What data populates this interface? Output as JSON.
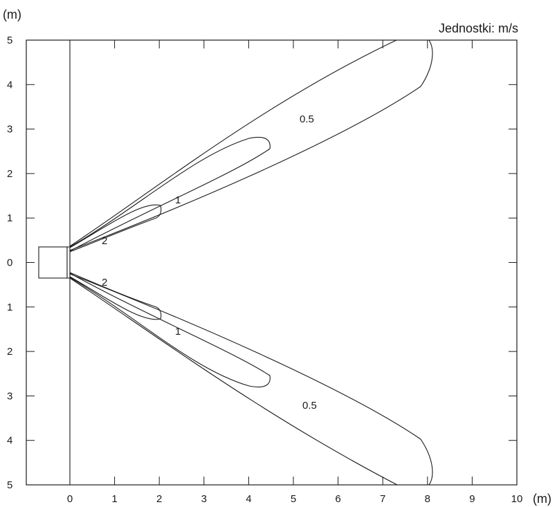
{
  "diagram": {
    "y_unit": "(m)",
    "x_unit": "(m)",
    "units_note": "Jednostki: m/s",
    "x_ticks": [
      "0",
      "1",
      "2",
      "3",
      "4",
      "5",
      "6",
      "7",
      "8",
      "9",
      "10"
    ],
    "y_ticks": [
      "5",
      "4",
      "3",
      "2",
      "1",
      "0",
      "1",
      "2",
      "3",
      "4",
      "5"
    ],
    "contour_labels": {
      "upper_05": "0.5",
      "upper_1": "1",
      "upper_2": "2",
      "lower_2": "2",
      "lower_1": "1",
      "lower_05": "0.5"
    }
  }
}
